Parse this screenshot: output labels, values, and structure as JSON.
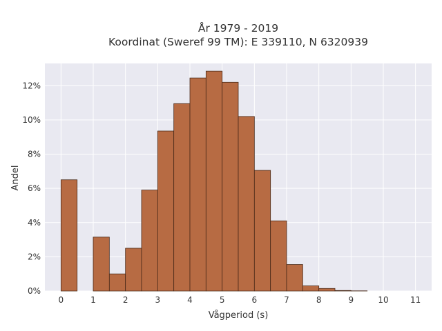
{
  "chart_data": {
    "type": "bar",
    "title_line1": "År 1979 - 2019",
    "title_line2": "Koordinat (Sweref 99 TM): E 339110, N 6320939",
    "xlabel": "Vågperiod (s)",
    "ylabel": "Andel",
    "xlim": [
      -0.5,
      11.5
    ],
    "ylim": [
      0,
      13.3
    ],
    "x_ticks": [
      0,
      1,
      2,
      3,
      4,
      5,
      6,
      7,
      8,
      9,
      10,
      11
    ],
    "x_tick_labels": [
      "0",
      "1",
      "2",
      "3",
      "4",
      "5",
      "6",
      "7",
      "8",
      "9",
      "10",
      "11"
    ],
    "y_ticks": [
      0,
      2,
      4,
      6,
      8,
      10,
      12
    ],
    "y_tick_labels": [
      "0%",
      "2%",
      "4%",
      "6%",
      "8%",
      "10%",
      "12%"
    ],
    "grid": true,
    "bin_width": 0.5,
    "bins_start": [
      0,
      0.5,
      1.0,
      1.5,
      2.0,
      2.5,
      3.0,
      3.5,
      4.0,
      4.5,
      5.0,
      5.5,
      6.0,
      6.5,
      7.0,
      7.5,
      8.0,
      8.5,
      9.0,
      9.5,
      10.0,
      10.5,
      11.0
    ],
    "values": [
      6.5,
      0,
      3.15,
      1.0,
      2.5,
      5.9,
      9.35,
      10.95,
      12.45,
      12.85,
      12.2,
      10.2,
      7.05,
      4.1,
      1.55,
      0.3,
      0.15,
      0.03,
      0.01,
      0,
      0,
      0,
      0
    ],
    "bar_color": "#b76b43",
    "bar_edge_color": "#4a2a18",
    "plot_bg": "#e9e9f1",
    "grid_color": "#ffffff"
  }
}
